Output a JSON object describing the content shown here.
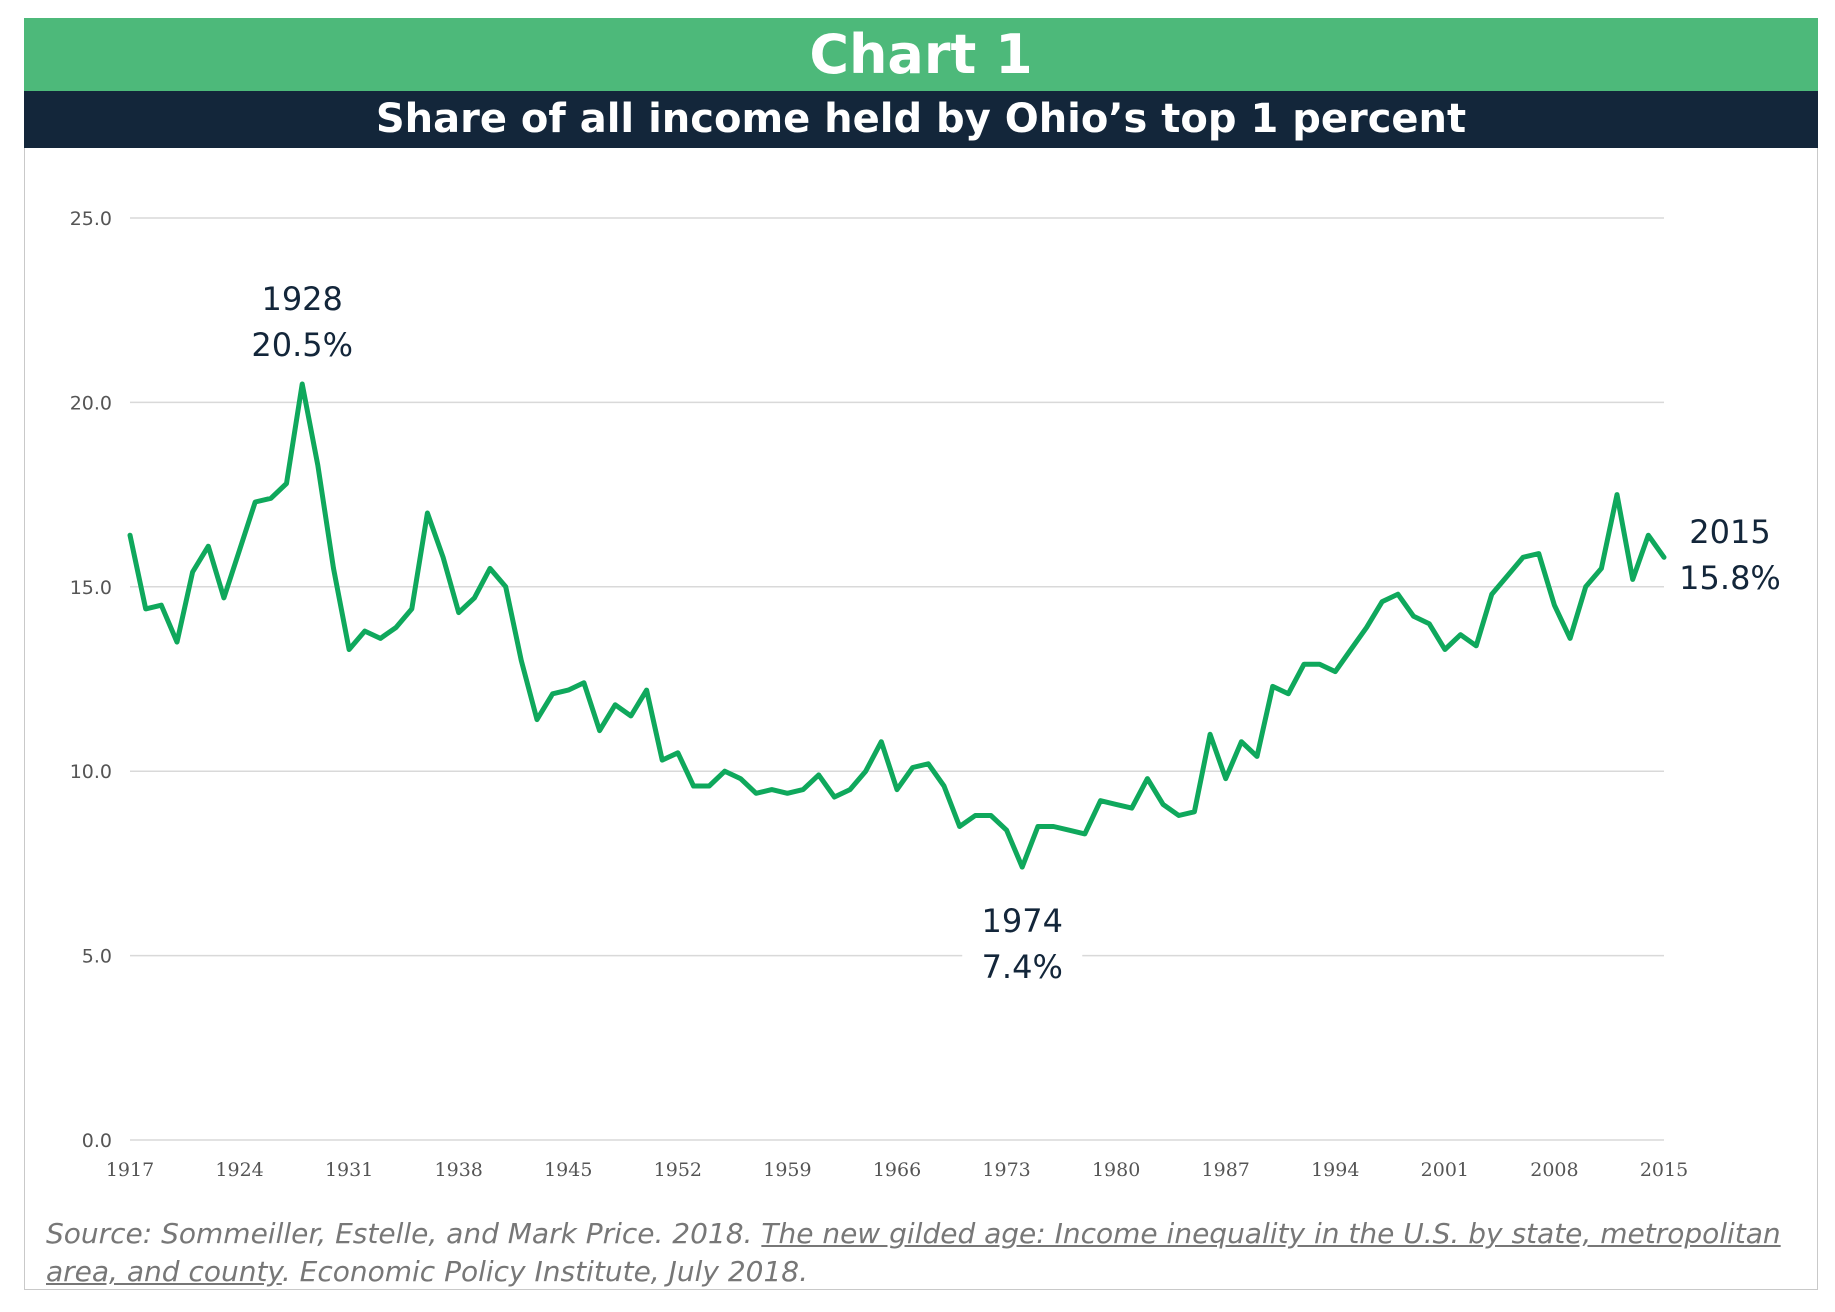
{
  "header": {
    "chart_label": "Chart 1",
    "subtitle": "Share of all income held by Ohio’s top 1 percent"
  },
  "source": {
    "prefix": "Source: Sommeiller, Estelle, and Mark Price. 2018. ",
    "link_text": "The new gilded age: Income inequality in the U.S. by state, metropolitan area, and county",
    "suffix": ". Economic Policy Institute, July 2018."
  },
  "colors": {
    "title_band": "#4db97a",
    "subtitle_band": "#13263a",
    "line": "#0fa85c",
    "annotation": "#13263a",
    "gridline": "#d9d9d9",
    "axis_text": "#555555"
  },
  "chart_data": {
    "type": "line",
    "title": "Share of all income held by Ohio’s top 1 percent",
    "xlabel": "",
    "ylabel": "",
    "ylim": [
      0,
      25
    ],
    "yticks": [
      "0.0",
      "5.0",
      "10.0",
      "15.0",
      "20.0",
      "25.0"
    ],
    "xlim": [
      1917,
      2015
    ],
    "xticks": [
      "1917",
      "1924",
      "1931",
      "1938",
      "1945",
      "1952",
      "1959",
      "1966",
      "1973",
      "1980",
      "1987",
      "1994",
      "2001",
      "2008",
      "2015"
    ],
    "grid": true,
    "legend": "none",
    "x": [
      1917,
      1918,
      1919,
      1920,
      1921,
      1922,
      1923,
      1924,
      1925,
      1926,
      1927,
      1928,
      1929,
      1930,
      1931,
      1932,
      1933,
      1934,
      1935,
      1936,
      1937,
      1938,
      1939,
      1940,
      1941,
      1942,
      1943,
      1944,
      1945,
      1946,
      1947,
      1948,
      1949,
      1950,
      1951,
      1952,
      1953,
      1954,
      1955,
      1956,
      1957,
      1958,
      1959,
      1960,
      1961,
      1962,
      1963,
      1964,
      1965,
      1966,
      1967,
      1968,
      1969,
      1970,
      1971,
      1972,
      1973,
      1974,
      1975,
      1976,
      1977,
      1978,
      1979,
      1980,
      1981,
      1982,
      1983,
      1984,
      1985,
      1986,
      1987,
      1988,
      1989,
      1990,
      1991,
      1992,
      1993,
      1994,
      1995,
      1996,
      1997,
      1998,
      1999,
      2000,
      2001,
      2002,
      2003,
      2004,
      2005,
      2006,
      2007,
      2008,
      2009,
      2010,
      2011,
      2012,
      2013,
      2014,
      2015
    ],
    "series": [
      {
        "values": [
          16.4,
          14.4,
          14.5,
          13.5,
          15.4,
          16.1,
          14.7,
          16.0,
          17.3,
          17.4,
          17.8,
          20.5,
          18.3,
          15.5,
          13.3,
          13.8,
          13.6,
          13.9,
          14.4,
          17.0,
          15.8,
          14.3,
          14.7,
          15.5,
          15.0,
          13.0,
          11.4,
          12.1,
          12.2,
          12.4,
          11.1,
          11.8,
          11.5,
          12.2,
          10.3,
          10.5,
          9.6,
          9.6,
          10.0,
          9.8,
          9.4,
          9.5,
          9.4,
          9.5,
          9.9,
          9.3,
          9.5,
          10.0,
          10.8,
          9.5,
          10.1,
          10.2,
          9.6,
          8.5,
          8.8,
          8.8,
          8.4,
          7.4,
          8.5,
          8.5,
          8.4,
          8.3,
          9.2,
          9.1,
          9.0,
          9.8,
          9.1,
          8.8,
          8.9,
          11.0,
          9.8,
          10.8,
          10.4,
          12.3,
          12.1,
          12.9,
          12.9,
          12.7,
          13.3,
          13.9,
          14.6,
          14.8,
          14.2,
          14.0,
          13.3,
          13.7,
          13.4,
          14.8,
          15.3,
          15.8,
          15.9,
          14.5,
          13.6,
          15.0,
          15.5,
          17.5,
          15.2,
          16.4,
          15.8
        ]
      }
    ],
    "annotations": [
      {
        "year": "1928",
        "value": "20.5%"
      },
      {
        "year": "1974",
        "value": "7.4%"
      },
      {
        "year": "2015",
        "value": "15.8%"
      }
    ]
  }
}
